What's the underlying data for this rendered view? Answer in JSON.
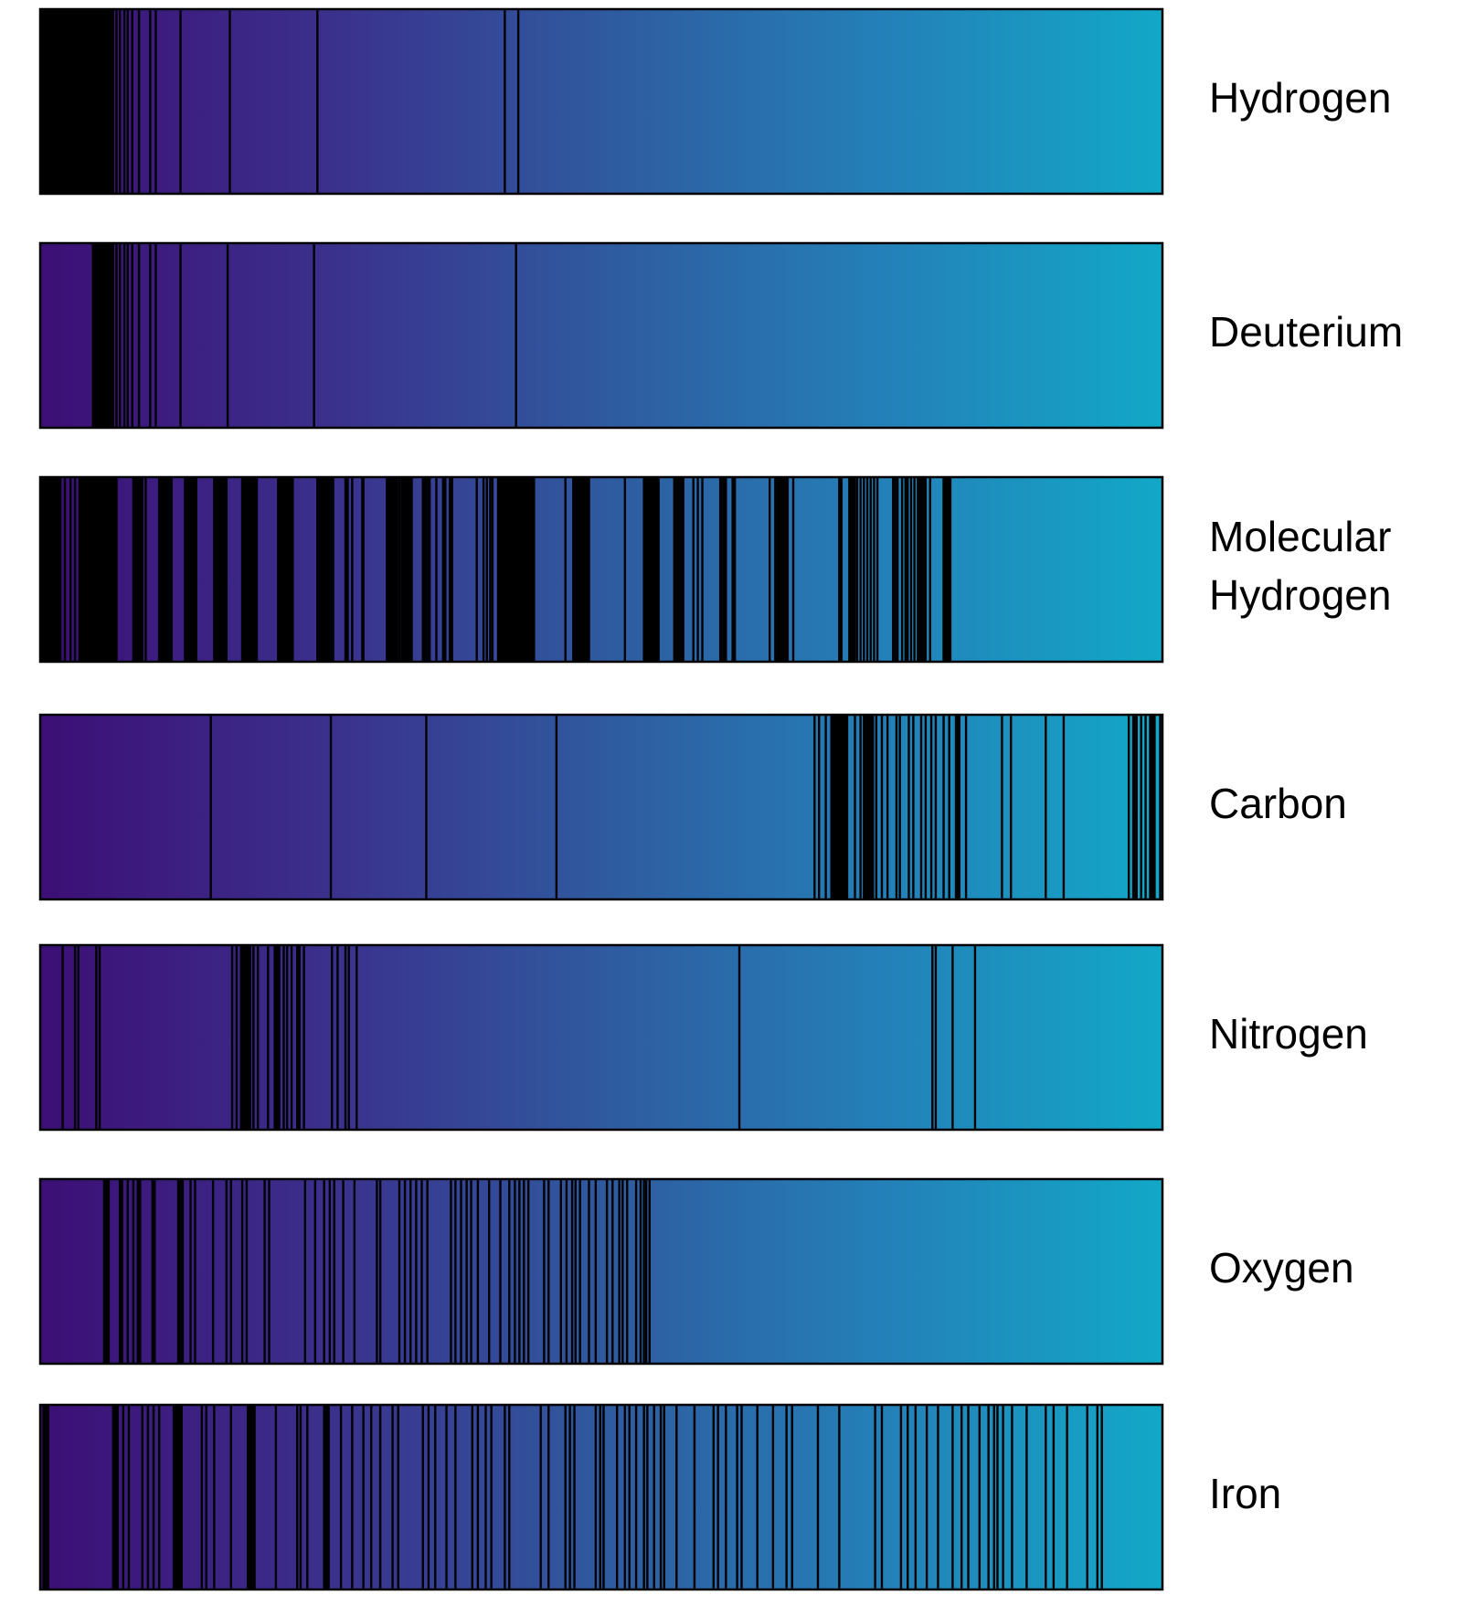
{
  "chart_data": {
    "type": "spectrum",
    "title": "",
    "xlabel": "",
    "ylabel": "",
    "gradient": [
      "#3c0f75",
      "#3b2f8c",
      "#2f5a9f",
      "#2480b8",
      "#12a8c8"
    ],
    "line_color": "#000000",
    "spectra": [
      {
        "name": "Hydrogen",
        "label_lines": [
          "Hydrogen"
        ],
        "bands": [
          [
            0.0,
            0.066
          ]
        ],
        "lines": [
          0.068,
          0.071,
          0.075,
          0.078,
          0.082,
          0.088,
          0.098,
          0.103,
          0.125,
          0.169,
          0.247,
          0.414,
          0.426
        ]
      },
      {
        "name": "Deuterium",
        "label_lines": [
          "Deuterium"
        ],
        "bands": [
          [
            0.046,
            0.066
          ]
        ],
        "lines": [
          0.068,
          0.071,
          0.075,
          0.078,
          0.082,
          0.088,
          0.098,
          0.103,
          0.125,
          0.167,
          0.244,
          0.424
        ]
      },
      {
        "name": "Molecular Hydrogen",
        "label_lines": [
          "Molecular",
          "Hydrogen"
        ],
        "bands": [
          [
            0.0,
            0.019
          ],
          [
            0.034,
            0.069
          ],
          [
            0.082,
            0.092
          ],
          [
            0.105,
            0.118
          ],
          [
            0.128,
            0.14
          ],
          [
            0.154,
            0.167
          ],
          [
            0.179,
            0.194
          ],
          [
            0.211,
            0.226
          ],
          [
            0.246,
            0.262
          ],
          [
            0.271,
            0.275
          ],
          [
            0.277,
            0.279
          ],
          [
            0.286,
            0.289
          ],
          [
            0.308,
            0.319
          ],
          [
            0.321,
            0.332
          ],
          [
            0.34,
            0.348
          ],
          [
            0.358,
            0.362
          ],
          [
            0.364,
            0.368
          ],
          [
            0.407,
            0.441
          ],
          [
            0.474,
            0.49
          ],
          [
            0.537,
            0.552
          ],
          [
            0.564,
            0.574
          ],
          [
            0.605,
            0.612
          ],
          [
            0.616,
            0.62
          ],
          [
            0.656,
            0.667
          ],
          [
            0.711,
            0.715
          ],
          [
            0.72,
            0.727
          ],
          [
            0.783,
            0.79
          ],
          [
            0.792,
            0.794
          ],
          [
            0.804,
            0.812
          ]
        ],
        "lines": [
          0.022,
          0.027,
          0.031,
          0.094,
          0.309,
          0.32,
          0.327,
          0.353,
          0.361,
          0.389,
          0.395,
          0.398,
          0.401,
          0.403,
          0.423,
          0.428,
          0.432,
          0.434,
          0.468,
          0.476,
          0.521,
          0.582,
          0.586,
          0.59,
          0.65,
          0.655,
          0.659,
          0.662,
          0.671,
          0.728,
          0.731,
          0.734,
          0.737,
          0.74,
          0.743,
          0.746,
          0.76,
          0.762,
          0.764,
          0.768,
          0.771,
          0.773,
          0.776,
          0.779,
          0.782
        ]
      },
      {
        "name": "Carbon",
        "label_lines": [
          "Carbon"
        ],
        "bands": [
          [
            0.704,
            0.72
          ],
          [
            0.733,
            0.743
          ],
          [
            0.815,
            0.82
          ],
          [
            0.973,
            0.978
          ],
          [
            0.988,
            0.994
          ]
        ],
        "lines": [
          0.152,
          0.259,
          0.344,
          0.46,
          0.69,
          0.694,
          0.7,
          0.726,
          0.731,
          0.737,
          0.745,
          0.75,
          0.755,
          0.763,
          0.766,
          0.774,
          0.778,
          0.785,
          0.789,
          0.794,
          0.798,
          0.805,
          0.81,
          0.825,
          0.857,
          0.865,
          0.896,
          0.912,
          0.97,
          0.981,
          0.985,
          0.998
        ]
      },
      {
        "name": "Nitrogen",
        "label_lines": [
          "Nitrogen"
        ],
        "bands": [
          [
            0.178,
            0.188
          ],
          [
            0.208,
            0.214
          ]
        ],
        "lines": [
          0.02,
          0.031,
          0.034,
          0.05,
          0.053,
          0.171,
          0.175,
          0.19,
          0.194,
          0.203,
          0.217,
          0.22,
          0.224,
          0.229,
          0.231,
          0.235,
          0.26,
          0.265,
          0.272,
          0.275,
          0.282,
          0.623,
          0.795,
          0.798,
          0.813,
          0.833
        ]
      },
      {
        "name": "Oxygen",
        "label_lines": [
          "Oxygen"
        ],
        "bands": [
          [
            0.056,
            0.062
          ],
          [
            0.07,
            0.074
          ],
          [
            0.086,
            0.09
          ],
          [
            0.122,
            0.128
          ]
        ],
        "lines": [
          0.078,
          0.083,
          0.1,
          0.102,
          0.134,
          0.138,
          0.154,
          0.166,
          0.17,
          0.18,
          0.184,
          0.2,
          0.204,
          0.236,
          0.245,
          0.253,
          0.258,
          0.262,
          0.27,
          0.28,
          0.3,
          0.303,
          0.32,
          0.325,
          0.33,
          0.335,
          0.34,
          0.345,
          0.366,
          0.37,
          0.375,
          0.38,
          0.384,
          0.39,
          0.4,
          0.41,
          0.418,
          0.423,
          0.427,
          0.431,
          0.435,
          0.449,
          0.453,
          0.464,
          0.469,
          0.474,
          0.477,
          0.481,
          0.489,
          0.495,
          0.505,
          0.51,
          0.516,
          0.519,
          0.523,
          0.531,
          0.535,
          0.538,
          0.54,
          0.543
        ]
      },
      {
        "name": "Iron",
        "label_lines": [
          "Iron"
        ],
        "bands": [
          [
            0.002,
            0.008
          ],
          [
            0.064,
            0.07
          ],
          [
            0.118,
            0.127
          ],
          [
            0.184,
            0.192
          ],
          [
            0.252,
            0.258
          ]
        ],
        "lines": [
          0.074,
          0.079,
          0.091,
          0.096,
          0.101,
          0.106,
          0.144,
          0.148,
          0.155,
          0.17,
          0.188,
          0.21,
          0.229,
          0.232,
          0.238,
          0.268,
          0.278,
          0.288,
          0.295,
          0.303,
          0.314,
          0.319,
          0.341,
          0.346,
          0.352,
          0.362,
          0.37,
          0.385,
          0.39,
          0.397,
          0.402,
          0.414,
          0.418,
          0.446,
          0.453,
          0.468,
          0.472,
          0.476,
          0.495,
          0.499,
          0.502,
          0.514,
          0.521,
          0.525,
          0.531,
          0.538,
          0.541,
          0.547,
          0.553,
          0.556,
          0.567,
          0.583,
          0.6,
          0.604,
          0.611,
          0.621,
          0.625,
          0.639,
          0.653,
          0.665,
          0.67,
          0.693,
          0.712,
          0.744,
          0.75,
          0.767,
          0.773,
          0.78,
          0.79,
          0.8,
          0.813,
          0.821,
          0.827,
          0.837,
          0.845,
          0.85,
          0.853,
          0.858,
          0.866,
          0.879,
          0.896,
          0.903,
          0.915,
          0.933,
          0.942,
          0.946
        ]
      }
    ]
  }
}
